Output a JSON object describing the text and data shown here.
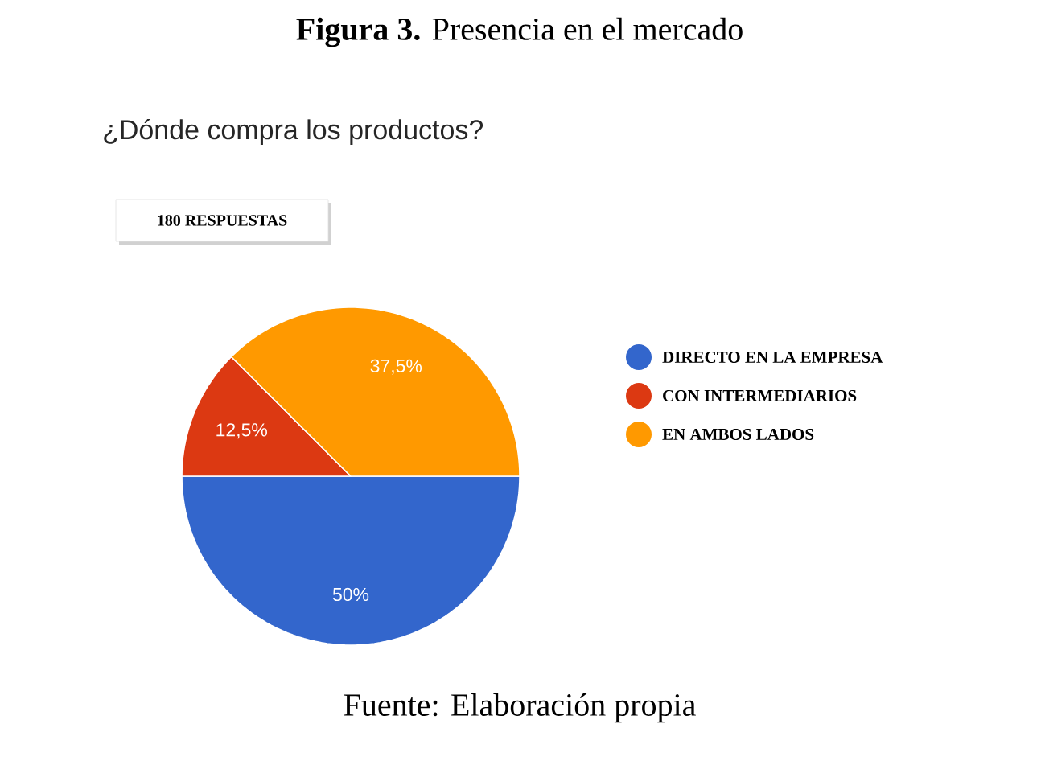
{
  "chart_data": {
    "type": "pie",
    "title": "**Figura 3.** Presencia en el mercado",
    "subtitle": "¿Dónde compra los productos?",
    "categories": [
      "DIRECTO EN LA EMPRESA",
      "CON INTERMEDIARIOS",
      "EN AMBOS LADOS"
    ],
    "values": [
      50,
      12.5,
      37.5
    ],
    "value_labels": [
      "50%",
      "12,5%",
      "37,5%"
    ],
    "colors": [
      "#3366cc",
      "#dc3912",
      "#ff9900"
    ],
    "legend": "right",
    "annotations": [
      "180 RESPUESTAS",
      "Fuente: Elaboración propia"
    ]
  }
}
